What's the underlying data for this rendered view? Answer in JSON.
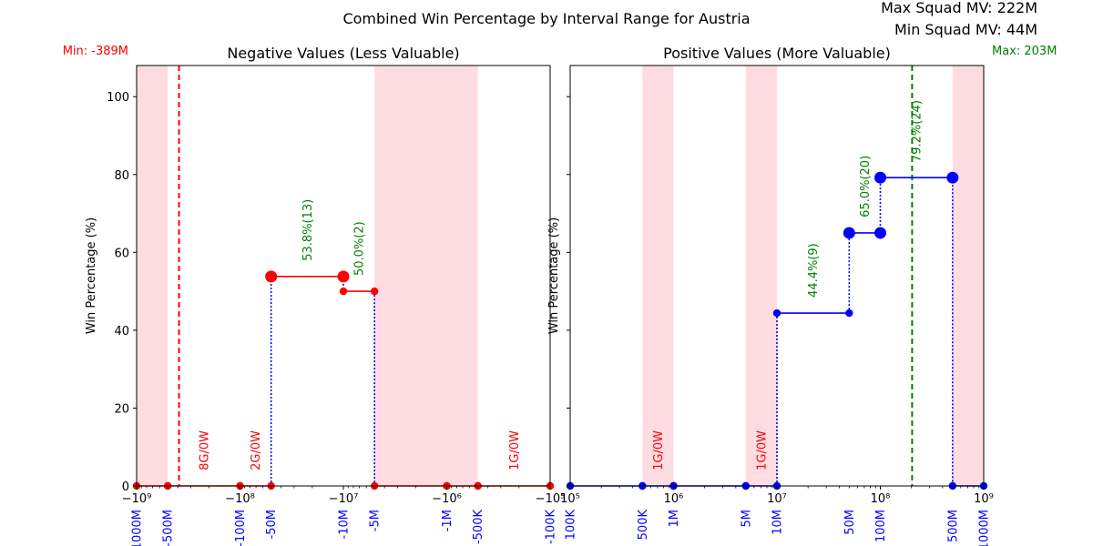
{
  "chart_data": {
    "title": "Combined Win Percentage by Interval Range for Austria",
    "max_squad_mv": "Max Squad MV: 222M",
    "min_squad_mv": "Min Squad MV: 44M",
    "colors": {
      "neg_line": "#ff0000",
      "pos_line": "#0000ff",
      "shade": "#ffc0cb",
      "annotation_win": "#008000",
      "annotation_zero": "#ff0000",
      "sub_label": "#0000ff"
    },
    "panels": [
      {
        "id": "negative",
        "type": "line",
        "title": "Negative Values (Less Valuable)",
        "ylabel": "Win Percentage (%)",
        "xscale": "symlog-negative",
        "xlim": [
          -1000000000,
          -100000
        ],
        "ylim": [
          0,
          108
        ],
        "yticks": [
          0,
          20,
          40,
          60,
          80,
          100
        ],
        "ytick_labels": [
          "0",
          "20",
          "40",
          "60",
          "80",
          "100"
        ],
        "xticks": [
          -1000000000,
          -100000000,
          -10000000,
          -1000000,
          -100000
        ],
        "xtick_labels": [
          "−10⁹",
          "−10⁸",
          "−10⁷",
          "−10⁶",
          "−10⁵"
        ],
        "sub_ticks": [
          -1000000000,
          -500000000,
          -100000000,
          -50000000,
          -10000000,
          -5000000,
          -1000000,
          -500000,
          -100000
        ],
        "sub_labels": [
          "-1000M",
          "-500M",
          "-100M",
          "-50M",
          "-10M",
          "-5M",
          "-1M",
          "-500K",
          "-100K"
        ],
        "shaded": [
          [
            -1000000000,
            -500000000
          ],
          [
            -5000000,
            -500000
          ]
        ],
        "vline": {
          "x": -389000000,
          "color": "#ff0000",
          "label": "Min: -389M"
        },
        "segments": [
          {
            "x0": -1000000000,
            "x1": -500000000,
            "win_pct": 0,
            "label": "",
            "marker": "small"
          },
          {
            "x0": -500000000,
            "x1": -100000000,
            "win_pct": 0,
            "label": "8G/0W",
            "marker": "small"
          },
          {
            "x0": -100000000,
            "x1": -50000000,
            "win_pct": 0,
            "label": "2G/0W",
            "marker": "small"
          },
          {
            "x0": -50000000,
            "x1": -10000000,
            "win_pct": 53.8,
            "label": "53.8%(13)",
            "marker": "large"
          },
          {
            "x0": -10000000,
            "x1": -5000000,
            "win_pct": 50.0,
            "label": "50.0%(2)",
            "marker": "small"
          },
          {
            "x0": -5000000,
            "x1": -1000000,
            "win_pct": 0,
            "label": "",
            "marker": "small"
          },
          {
            "x0": -1000000,
            "x1": -500000,
            "win_pct": 0,
            "label": "",
            "marker": "small"
          },
          {
            "x0": -500000,
            "x1": -100000,
            "win_pct": 0,
            "label": "1G/0W",
            "marker": "small"
          }
        ]
      },
      {
        "id": "positive",
        "type": "line",
        "title": "Positive Values (More Valuable)",
        "ylabel": "Win Percentage (%)",
        "xscale": "log",
        "xlim": [
          100000,
          1000000000
        ],
        "ylim": [
          0,
          108
        ],
        "yticks": [
          0,
          20,
          40,
          60,
          80,
          100
        ],
        "xticks": [
          100000,
          1000000,
          10000000,
          100000000,
          1000000000
        ],
        "xtick_labels": [
          "10⁵",
          "10⁶",
          "10⁷",
          "10⁸",
          "10⁹"
        ],
        "sub_ticks": [
          100000,
          500000,
          1000000,
          5000000,
          10000000,
          50000000,
          100000000,
          500000000,
          1000000000
        ],
        "sub_labels": [
          "100K",
          "500K",
          "1M",
          "5M",
          "10M",
          "50M",
          "100M",
          "500M",
          "1000M"
        ],
        "shaded": [
          [
            500000,
            1000000
          ],
          [
            5000000,
            10000000
          ],
          [
            500000000,
            1000000000
          ]
        ],
        "vline": {
          "x": 203000000,
          "color": "#008000",
          "label": "Max: 203M"
        },
        "segments": [
          {
            "x0": 100000,
            "x1": 500000,
            "win_pct": 0,
            "label": "",
            "marker": "small"
          },
          {
            "x0": 500000,
            "x1": 1000000,
            "win_pct": 0,
            "label": "1G/0W",
            "marker": "small"
          },
          {
            "x0": 1000000,
            "x1": 5000000,
            "win_pct": 0,
            "label": "",
            "marker": "small"
          },
          {
            "x0": 5000000,
            "x1": 10000000,
            "win_pct": 0,
            "label": "1G/0W",
            "marker": "small"
          },
          {
            "x0": 10000000,
            "x1": 50000000,
            "win_pct": 44.4,
            "label": "44.4%(9)",
            "marker": "small"
          },
          {
            "x0": 50000000,
            "x1": 100000000,
            "win_pct": 65.0,
            "label": "65.0%(20)",
            "marker": "large"
          },
          {
            "x0": 100000000,
            "x1": 500000000,
            "win_pct": 79.2,
            "label": "79.2%(24)",
            "marker": "large"
          },
          {
            "x0": 500000000,
            "x1": 1000000000,
            "win_pct": 0,
            "label": "",
            "marker": "small"
          }
        ]
      }
    ]
  }
}
